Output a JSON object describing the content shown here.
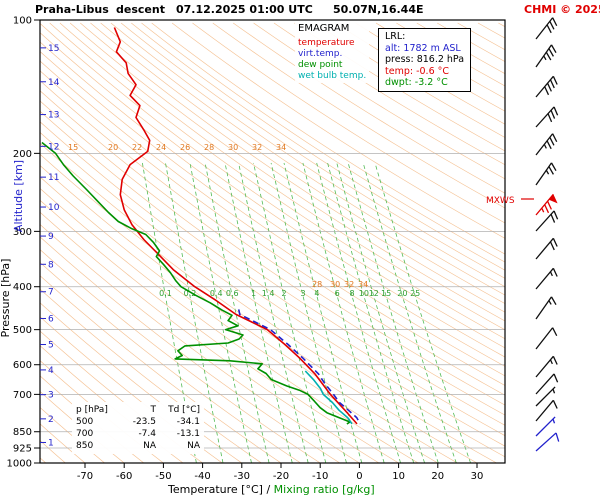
{
  "header": {
    "station": "Praha-Libus",
    "type": "descent",
    "datetime": "07.12.2025 01:00 UTC",
    "coords": "50.07N,16.44E",
    "copyright": "CHMI © 2025"
  },
  "legend": {
    "title": "EMAGRAM",
    "items": [
      {
        "label": "temperature",
        "color": "#e00000"
      },
      {
        "label": "virt.temp.",
        "color": "#2222cc"
      },
      {
        "label": "dew point",
        "color": "#009000"
      },
      {
        "label": "wet bulb temp.",
        "color": "#00b0b0"
      }
    ]
  },
  "lrl": {
    "title": "LRL:",
    "alt": "alt: 1782 m ASL",
    "press": "press: 816.2 hPa",
    "temp": "temp: -0.6 °C",
    "dwpt": "dwpt: -3.2 °C",
    "alt_color": "#2222cc",
    "temp_color": "#e00000",
    "dwpt_color": "#009000"
  },
  "axes": {
    "y_title_pressure": "Pressure [hPa]",
    "y_title_altitude": "Altitude [km]",
    "x_title_temp": "Temperature [°C]",
    "x_title_slash": "  /  ",
    "x_title_mixing": "Mixing ratio [g/kg]"
  },
  "table": {
    "col_p": "p [hPa]",
    "col_t": "T",
    "col_td": "Td [°C]",
    "rows": [
      [
        "500",
        "-23.5",
        "-34.1"
      ],
      [
        "700",
        "-7.4",
        "-13.1"
      ],
      [
        "850",
        "NA",
        "NA"
      ]
    ]
  },
  "chart_data": {
    "type": "line",
    "title": "EMAGRAM sounding, Praha-Libus descent, 07.12.2025 01:00 UTC",
    "x_axis": {
      "label": "Temperature [°C]",
      "ticks": [
        -70,
        -60,
        -50,
        -40,
        -30,
        -20,
        -10,
        0,
        10,
        20,
        30
      ]
    },
    "y_axis": {
      "label": "Pressure [hPa]",
      "scale": "log",
      "ticks": [
        100,
        200,
        300,
        400,
        500,
        600,
        700,
        850,
        925,
        1000
      ]
    },
    "altitude_ticks_km": [
      1,
      2,
      3,
      4,
      5,
      6,
      7,
      8,
      9,
      10,
      11,
      12,
      13,
      14,
      15
    ],
    "mixing_ratio_lines": [
      0.1,
      0.2,
      0.4,
      0.6,
      1,
      1.4,
      2,
      3,
      4,
      6,
      8,
      10,
      12,
      15,
      20,
      25
    ],
    "lrl_pressure_hpa": 816.2,
    "series": [
      {
        "name": "temperature",
        "color": "#e00000",
        "style": "solid",
        "points": [
          [
            104,
            -62.5
          ],
          [
            112,
            -61
          ],
          [
            118,
            -62
          ],
          [
            125,
            -59.5
          ],
          [
            132,
            -59
          ],
          [
            140,
            -57
          ],
          [
            148,
            -58.5
          ],
          [
            156,
            -56
          ],
          [
            166,
            -57
          ],
          [
            177,
            -55
          ],
          [
            187,
            -53.5
          ],
          [
            198,
            -54
          ],
          [
            212,
            -58.5
          ],
          [
            229,
            -60.5
          ],
          [
            248,
            -61
          ],
          [
            268,
            -60
          ],
          [
            290,
            -58
          ],
          [
            313,
            -55
          ],
          [
            340,
            -51
          ],
          [
            366,
            -47.5
          ],
          [
            400,
            -42
          ],
          [
            430,
            -36.5
          ],
          [
            462,
            -31.5
          ],
          [
            500,
            -23.5
          ],
          [
            540,
            -19
          ],
          [
            580,
            -15.2
          ],
          [
            630,
            -11.3
          ],
          [
            700,
            -7.4
          ],
          [
            760,
            -3.7
          ],
          [
            816.2,
            -0.6
          ]
        ]
      },
      {
        "name": "dew point",
        "color": "#009000",
        "style": "solid",
        "points": [
          [
            189,
            -81
          ],
          [
            200,
            -77.5
          ],
          [
            212,
            -75.5
          ],
          [
            225,
            -73
          ],
          [
            242,
            -69.5
          ],
          [
            258,
            -66.5
          ],
          [
            272,
            -64
          ],
          [
            285,
            -61.5
          ],
          [
            296,
            -58
          ],
          [
            305,
            -54.5
          ],
          [
            318,
            -52.5
          ],
          [
            332,
            -51
          ],
          [
            342,
            -51.8
          ],
          [
            356,
            -50
          ],
          [
            372,
            -48.2
          ],
          [
            388,
            -46.8
          ],
          [
            400,
            -45.5
          ],
          [
            418,
            -41.8
          ],
          [
            435,
            -38
          ],
          [
            452,
            -35
          ],
          [
            464,
            -32.5
          ],
          [
            477,
            -33.5
          ],
          [
            490,
            -31
          ],
          [
            500,
            -34.1
          ],
          [
            514,
            -29.7
          ],
          [
            525,
            -30.7
          ],
          [
            536,
            -33.5
          ],
          [
            544,
            -44.5
          ],
          [
            558,
            -46.3
          ],
          [
            572,
            -45.2
          ],
          [
            582,
            -47
          ],
          [
            588,
            -33
          ],
          [
            597,
            -24.8
          ],
          [
            613,
            -25.9
          ],
          [
            628,
            -23.8
          ],
          [
            648,
            -22.5
          ],
          [
            670,
            -18.5
          ],
          [
            685,
            -15.3
          ],
          [
            700,
            -13.1
          ],
          [
            725,
            -11.5
          ],
          [
            750,
            -10
          ],
          [
            770,
            -8.3
          ],
          [
            790,
            -5.2
          ],
          [
            808,
            -2.4
          ],
          [
            816.2,
            -3.2
          ]
        ]
      },
      {
        "name": "virt.temp.",
        "color": "#2222cc",
        "style": "dashed",
        "points": [
          [
            450,
            -30.8
          ],
          [
            462,
            -30.5
          ],
          [
            500,
            -22.7
          ],
          [
            540,
            -18.2
          ],
          [
            580,
            -14.4
          ],
          [
            630,
            -10.4
          ],
          [
            660,
            -8.9
          ],
          [
            700,
            -6.6
          ],
          [
            730,
            -5.1
          ],
          [
            760,
            -2.8
          ],
          [
            790,
            -0.7
          ],
          [
            816.2,
            0.2
          ]
        ]
      },
      {
        "name": "wet bulb temp.",
        "color": "#00b0b0",
        "style": "solid",
        "points": [
          [
            620,
            -13.8
          ],
          [
            650,
            -11.6
          ],
          [
            680,
            -9.9
          ],
          [
            700,
            -9.2
          ],
          [
            730,
            -6.9
          ],
          [
            760,
            -5.2
          ],
          [
            790,
            -3
          ],
          [
            816.2,
            -1.9
          ]
        ]
      }
    ],
    "winds": [
      {
        "y": 30,
        "f": 3,
        "h": 0,
        "fl": 0,
        "a": -52
      },
      {
        "y": 58,
        "f": 3,
        "h": 1,
        "fl": 0,
        "a": -55
      },
      {
        "y": 88,
        "f": 4,
        "h": 0,
        "fl": 0,
        "a": -50
      },
      {
        "y": 118,
        "f": 3,
        "h": 0,
        "fl": 0,
        "a": -48
      },
      {
        "y": 146,
        "f": 3,
        "h": 1,
        "fl": 0,
        "a": -52
      },
      {
        "y": 176,
        "f": 2,
        "h": 1,
        "fl": 0,
        "a": -55
      },
      {
        "y": 206,
        "f": 2,
        "h": 1,
        "fl": 1,
        "a": -50,
        "c": "#e00000"
      },
      {
        "y": 222,
        "f": 2,
        "h": 0,
        "fl": 0,
        "a": -48
      },
      {
        "y": 250,
        "f": 2,
        "h": 0,
        "fl": 0,
        "a": -50
      },
      {
        "y": 280,
        "f": 1,
        "h": 1,
        "fl": 0,
        "a": -50
      },
      {
        "y": 310,
        "f": 1,
        "h": 1,
        "fl": 0,
        "a": -55
      },
      {
        "y": 340,
        "f": 1,
        "h": 0,
        "fl": 0,
        "a": -52
      },
      {
        "y": 368,
        "f": 1,
        "h": 1,
        "fl": 0,
        "a": -50
      },
      {
        "y": 385,
        "f": 1,
        "h": 0,
        "fl": 0,
        "a": -48
      },
      {
        "y": 397,
        "f": 0,
        "h": 1,
        "fl": 0,
        "a": -45
      },
      {
        "y": 412,
        "f": 1,
        "h": 0,
        "fl": 0,
        "a": -50
      },
      {
        "y": 427,
        "f": 0,
        "h": 1,
        "fl": 0,
        "a": -45,
        "c": "#2222cc"
      },
      {
        "y": 442,
        "f": 1,
        "h": 0,
        "fl": 0,
        "a": -42,
        "c": "#2222cc"
      }
    ],
    "annotations": {
      "mxws": "MXWS",
      "row200": {
        "y": 150,
        "items": [
          {
            "x": 68,
            "t": "15"
          },
          {
            "x": 108,
            "t": "20"
          },
          {
            "x": 132,
            "t": "22"
          },
          {
            "x": 156,
            "t": "24"
          },
          {
            "x": 180,
            "t": "26"
          },
          {
            "x": 204,
            "t": "28"
          },
          {
            "x": 228,
            "t": "30"
          },
          {
            "x": 252,
            "t": "32"
          },
          {
            "x": 276,
            "t": "34"
          }
        ]
      },
      "row400": {
        "y": 287,
        "items": [
          {
            "x": 312,
            "t": "28"
          },
          {
            "x": 330,
            "t": "30"
          },
          {
            "x": 344,
            "t": "32"
          },
          {
            "x": 358,
            "t": "34"
          }
        ]
      }
    }
  }
}
